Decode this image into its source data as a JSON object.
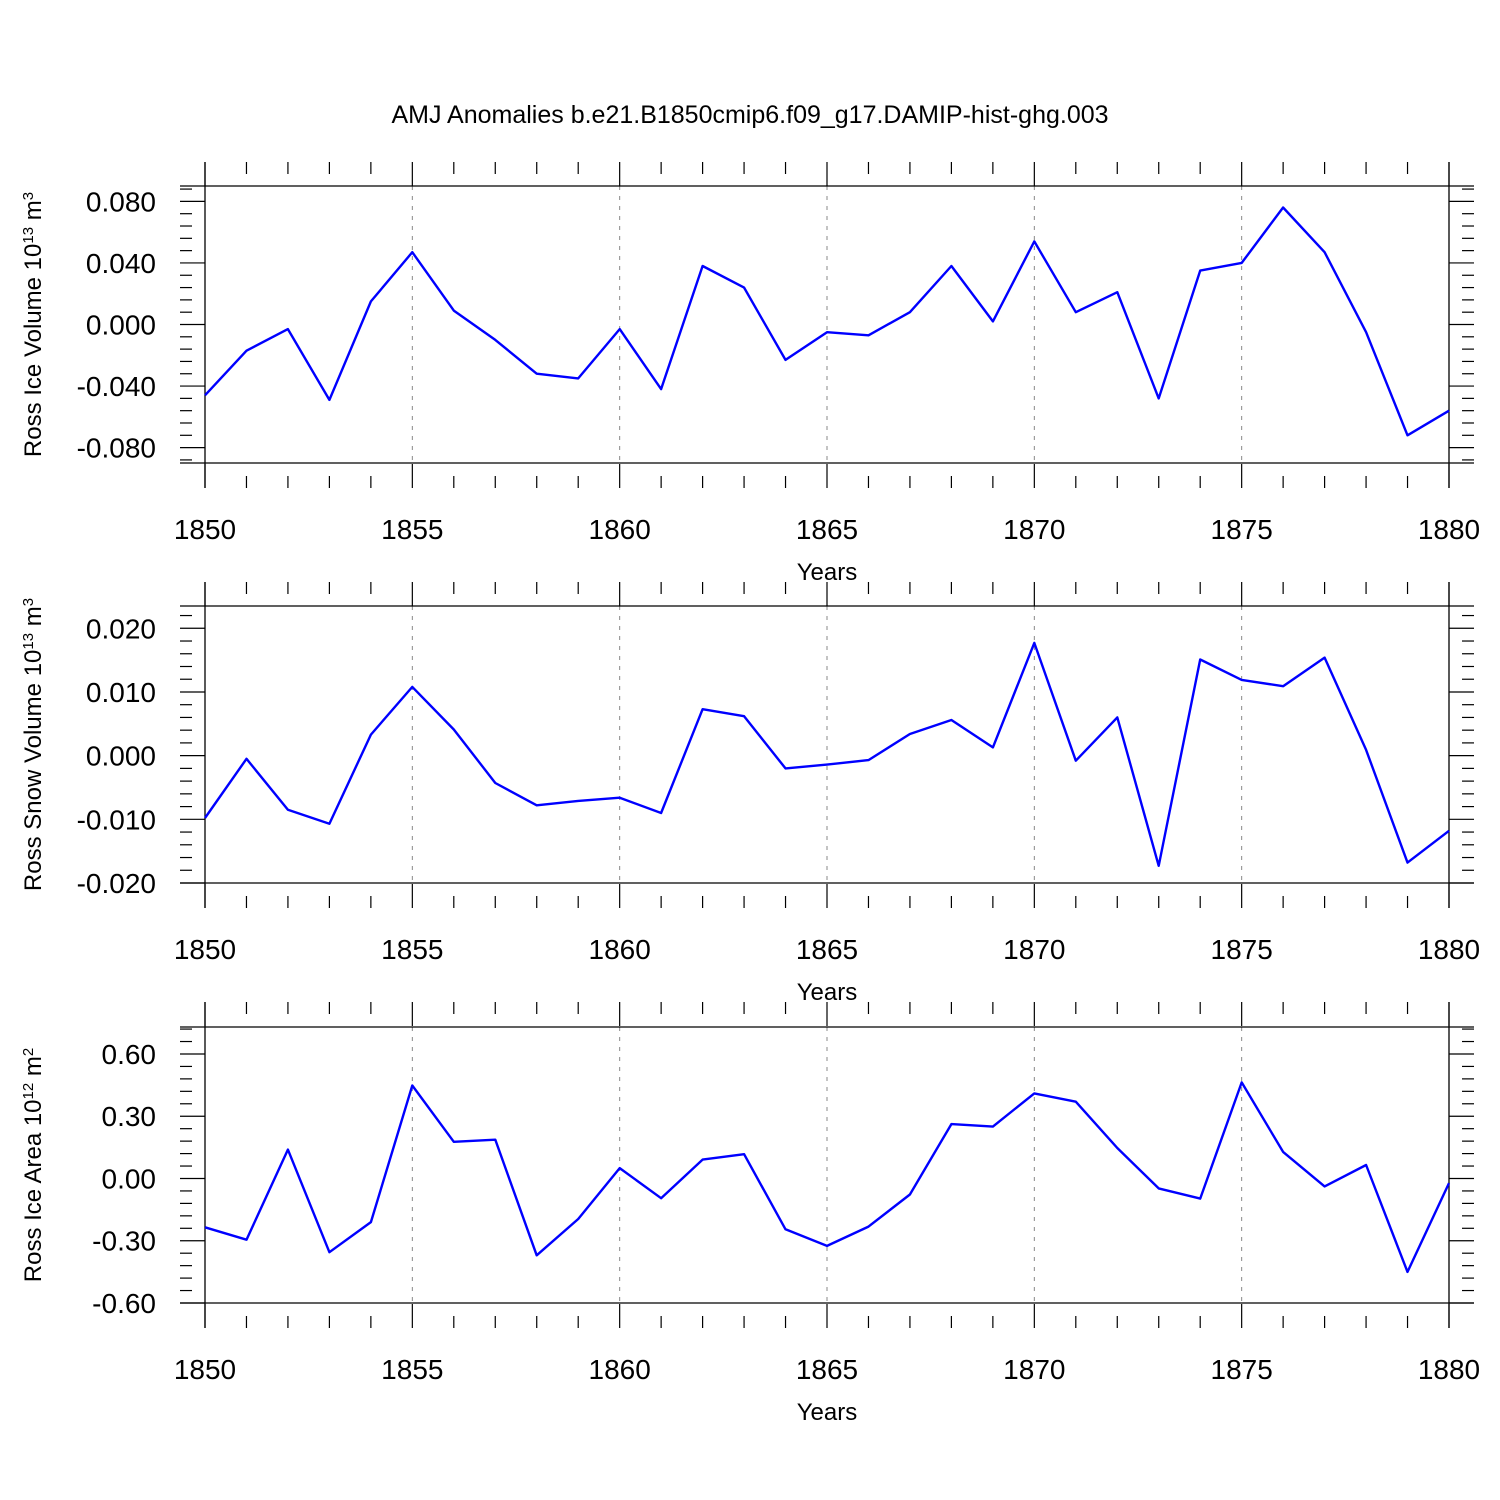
{
  "title": "AMJ Anomalies b.e21.B1850cmip6.f09_g17.DAMIP-hist-ghg.003",
  "line_color": "#0000ff",
  "chart_data": [
    {
      "type": "line",
      "ylabel_text": "Ross Ice Volume 10",
      "ylabel_exp": "13",
      "ylabel_unit": " m",
      "ylabel_unit_exp": "3",
      "xlabel": "Years",
      "xlim": [
        1850,
        1880
      ],
      "ylim": [
        -0.09,
        0.09
      ],
      "yticks": [
        -0.08,
        -0.04,
        0.0,
        0.04,
        0.08
      ],
      "ytick_labels": [
        "-0.080",
        "-0.040",
        "0.000",
        "0.040",
        "0.080"
      ],
      "yminor_step": 0.008,
      "xticks": [
        1850,
        1855,
        1860,
        1865,
        1870,
        1875,
        1880
      ],
      "xtick_labels": [
        "1850",
        "1855",
        "1860",
        "1865",
        "1870",
        "1875",
        "1880"
      ],
      "x": [
        1850,
        1851,
        1852,
        1853,
        1854,
        1855,
        1856,
        1857,
        1858,
        1859,
        1860,
        1861,
        1862,
        1863,
        1864,
        1865,
        1866,
        1867,
        1868,
        1869,
        1870,
        1871,
        1872,
        1873,
        1874,
        1875,
        1876,
        1877,
        1878,
        1879,
        1880
      ],
      "values": [
        -0.046,
        -0.017,
        -0.003,
        -0.049,
        0.015,
        0.047,
        0.009,
        -0.01,
        -0.032,
        -0.035,
        -0.003,
        -0.042,
        0.038,
        0.024,
        -0.023,
        -0.005,
        -0.007,
        0.008,
        0.038,
        0.002,
        0.054,
        0.008,
        0.021,
        -0.048,
        0.035,
        0.04,
        0.076,
        0.047,
        -0.005,
        -0.072,
        -0.056
      ]
    },
    {
      "type": "line",
      "ylabel_text": "Ross Snow Volume 10",
      "ylabel_exp": "13",
      "ylabel_unit": " m",
      "ylabel_unit_exp": "3",
      "xlabel": "Years",
      "xlim": [
        1850,
        1880
      ],
      "ylim": [
        -0.02,
        0.0235
      ],
      "yticks": [
        -0.02,
        -0.01,
        0.0,
        0.01,
        0.02
      ],
      "ytick_labels": [
        "-0.020",
        "-0.010",
        "0.000",
        "0.010",
        "0.020"
      ],
      "yminor_step": 0.002,
      "xticks": [
        1850,
        1855,
        1860,
        1865,
        1870,
        1875,
        1880
      ],
      "xtick_labels": [
        "1850",
        "1855",
        "1860",
        "1865",
        "1870",
        "1875",
        "1880"
      ],
      "x": [
        1850,
        1851,
        1852,
        1853,
        1854,
        1855,
        1856,
        1857,
        1858,
        1859,
        1860,
        1861,
        1862,
        1863,
        1864,
        1865,
        1866,
        1867,
        1868,
        1869,
        1870,
        1871,
        1872,
        1873,
        1874,
        1875,
        1876,
        1877,
        1878,
        1879,
        1880
      ],
      "values": [
        -0.0098,
        -0.0005,
        -0.0085,
        -0.0107,
        0.0033,
        0.0108,
        0.0041,
        -0.0043,
        -0.0078,
        -0.0071,
        -0.0066,
        -0.009,
        0.0073,
        0.0062,
        -0.002,
        -0.0014,
        -0.0007,
        0.0034,
        0.0056,
        0.0013,
        0.0177,
        -0.0008,
        0.006,
        -0.0173,
        0.0151,
        0.0119,
        0.0109,
        0.0154,
        0.0009,
        -0.0168,
        -0.0118
      ]
    },
    {
      "type": "line",
      "ylabel_text": "Ross Ice Area 10",
      "ylabel_exp": "12",
      "ylabel_unit": " m",
      "ylabel_unit_exp": "2",
      "xlabel": "Years",
      "xlim": [
        1850,
        1880
      ],
      "ylim": [
        -0.6,
        0.73
      ],
      "yticks": [
        -0.6,
        -0.3,
        0.0,
        0.3,
        0.6
      ],
      "ytick_labels": [
        "-0.60",
        "-0.30",
        "0.00",
        "0.30",
        "0.60"
      ],
      "yminor_step": 0.06,
      "xticks": [
        1850,
        1855,
        1860,
        1865,
        1870,
        1875,
        1880
      ],
      "xtick_labels": [
        "1850",
        "1855",
        "1860",
        "1865",
        "1870",
        "1875",
        "1880"
      ],
      "x": [
        1850,
        1851,
        1852,
        1853,
        1854,
        1855,
        1856,
        1857,
        1858,
        1859,
        1860,
        1861,
        1862,
        1863,
        1864,
        1865,
        1866,
        1867,
        1868,
        1869,
        1870,
        1871,
        1872,
        1873,
        1874,
        1875,
        1876,
        1877,
        1878,
        1879,
        1880
      ],
      "values": [
        -0.235,
        -0.295,
        0.139,
        -0.355,
        -0.21,
        0.448,
        0.177,
        0.187,
        -0.37,
        -0.195,
        0.05,
        -0.095,
        0.091,
        0.117,
        -0.245,
        -0.325,
        -0.232,
        -0.077,
        0.262,
        0.25,
        0.41,
        0.37,
        0.147,
        -0.048,
        -0.097,
        0.463,
        0.128,
        -0.038,
        0.065,
        -0.45,
        -0.022
      ]
    }
  ]
}
